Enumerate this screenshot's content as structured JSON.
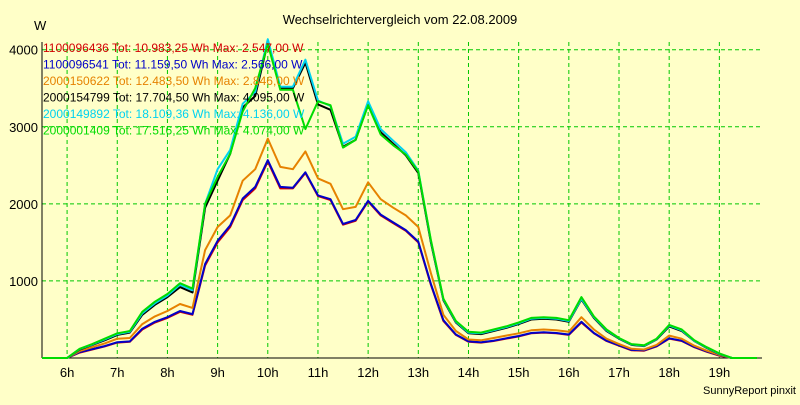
{
  "chart_data": {
    "type": "line",
    "title": "Wechselrichtervergleich vom 22.08.2009",
    "ylabel": "W",
    "footer": "SunnyReport pinxit",
    "x_ticks": [
      "6h",
      "7h",
      "8h",
      "9h",
      "10h",
      "11h",
      "12h",
      "13h",
      "14h",
      "15h",
      "16h",
      "17h",
      "18h",
      "19h"
    ],
    "y_ticks": [
      "1000",
      "2000",
      "3000",
      "4000"
    ],
    "xlim": [
      5.5,
      19.85
    ],
    "ylim": [
      0,
      4100
    ],
    "grid": true,
    "legend_position": "top-left",
    "background": "#ffffc8",
    "grid_color": "#00c800",
    "x": [
      5.5,
      5.75,
      6.0,
      6.25,
      6.5,
      6.75,
      7.0,
      7.25,
      7.5,
      7.75,
      8.0,
      8.25,
      8.5,
      8.75,
      9.0,
      9.25,
      9.5,
      9.75,
      10.0,
      10.25,
      10.5,
      10.75,
      11.0,
      11.25,
      11.5,
      11.75,
      12.0,
      12.25,
      12.5,
      12.75,
      13.0,
      13.25,
      13.5,
      13.75,
      14.0,
      14.25,
      14.5,
      14.75,
      15.0,
      15.25,
      15.5,
      15.75,
      16.0,
      16.25,
      16.5,
      16.75,
      17.0,
      17.25,
      17.5,
      17.75,
      18.0,
      18.25,
      18.5,
      18.75,
      19.0,
      19.25,
      19.5,
      19.75
    ],
    "series": [
      {
        "name": "1100096436",
        "legend": "1100096436 Tot: 10.983,25 Wh Max: 2.547,00 W",
        "color": "#d20000",
        "values": [
          0,
          0,
          0,
          70,
          110,
          150,
          200,
          210,
          370,
          460,
          520,
          600,
          560,
          1200,
          1500,
          1700,
          2050,
          2200,
          2550,
          2200,
          2200,
          2400,
          2100,
          2050,
          1730,
          1780,
          2030,
          1850,
          1750,
          1650,
          1500,
          950,
          480,
          300,
          210,
          200,
          220,
          250,
          280,
          320,
          330,
          320,
          300,
          460,
          320,
          220,
          160,
          100,
          95,
          150,
          250,
          220,
          140,
          80,
          30,
          0,
          0,
          0
        ]
      },
      {
        "name": "1100096541",
        "legend": "1100096541 Tot: 11.159,50 Wh Max: 2.566,00 W",
        "color": "#0000c8",
        "values": [
          0,
          0,
          0,
          75,
          115,
          155,
          205,
          215,
          380,
          470,
          530,
          610,
          570,
          1220,
          1520,
          1720,
          2070,
          2220,
          2566,
          2220,
          2210,
          2410,
          2110,
          2060,
          1740,
          1790,
          2040,
          1860,
          1760,
          1660,
          1510,
          960,
          490,
          305,
          215,
          205,
          225,
          255,
          285,
          325,
          335,
          325,
          305,
          470,
          325,
          225,
          165,
          105,
          100,
          155,
          255,
          225,
          145,
          85,
          35,
          0,
          0,
          0
        ]
      },
      {
        "name": "2000150622",
        "legend": "2000150622 Tot: 12.483,50 Wh Max: 2.846,00 W",
        "color": "#e68200",
        "values": [
          0,
          0,
          0,
          90,
          140,
          190,
          250,
          260,
          440,
          540,
          610,
          700,
          650,
          1400,
          1700,
          1850,
          2300,
          2450,
          2846,
          2480,
          2450,
          2680,
          2330,
          2260,
          1930,
          1960,
          2280,
          2060,
          1950,
          1850,
          1700,
          1100,
          560,
          350,
          240,
          230,
          260,
          290,
          320,
          360,
          370,
          360,
          340,
          530,
          370,
          250,
          180,
          120,
          110,
          170,
          290,
          250,
          160,
          95,
          40,
          0,
          0,
          0
        ]
      },
      {
        "name": "2000154799",
        "legend": "2000154799 Tot: 17.704,50 Wh Max: 4.095,00 W",
        "color": "#000000",
        "values": [
          0,
          0,
          0,
          110,
          170,
          230,
          300,
          330,
          560,
          690,
          790,
          920,
          850,
          1950,
          2300,
          2650,
          3250,
          3400,
          4095,
          3500,
          3500,
          3830,
          3290,
          3220,
          2740,
          2830,
          3290,
          2930,
          2780,
          2630,
          2400,
          1500,
          750,
          460,
          320,
          310,
          350,
          390,
          440,
          500,
          510,
          500,
          470,
          760,
          520,
          350,
          250,
          170,
          155,
          240,
          410,
          350,
          220,
          130,
          50,
          0,
          0,
          0
        ]
      },
      {
        "name": "2000149892",
        "legend": "2000149892 Tot: 18.109,36 Wh Max: 4.136,00 W",
        "color": "#00d2f0",
        "values": [
          0,
          0,
          0,
          115,
          175,
          240,
          310,
          340,
          580,
          710,
          810,
          950,
          880,
          2000,
          2450,
          2700,
          3300,
          3450,
          4136,
          3520,
          3520,
          3870,
          3340,
          3270,
          2780,
          2870,
          3330,
          2970,
          2820,
          2670,
          2430,
          1520,
          760,
          470,
          330,
          320,
          360,
          400,
          450,
          510,
          520,
          510,
          480,
          770,
          530,
          360,
          255,
          175,
          160,
          245,
          420,
          360,
          225,
          135,
          55,
          0,
          0,
          0
        ]
      },
      {
        "name": "2000001409",
        "legend": "2000001409 Tot: 17.516,25 Wh Max: 4.074,00 W",
        "color": "#00dc00",
        "values": [
          0,
          0,
          0,
          120,
          180,
          250,
          320,
          350,
          600,
          730,
          830,
          970,
          900,
          2000,
          2350,
          2650,
          3200,
          3500,
          4074,
          3480,
          3480,
          2970,
          3330,
          3280,
          2730,
          2830,
          3280,
          2900,
          2760,
          2640,
          2420,
          1530,
          770,
          480,
          340,
          330,
          370,
          410,
          460,
          520,
          530,
          520,
          490,
          790,
          540,
          370,
          260,
          180,
          165,
          250,
          430,
          370,
          230,
          140,
          60,
          0,
          0,
          0
        ]
      }
    ]
  }
}
